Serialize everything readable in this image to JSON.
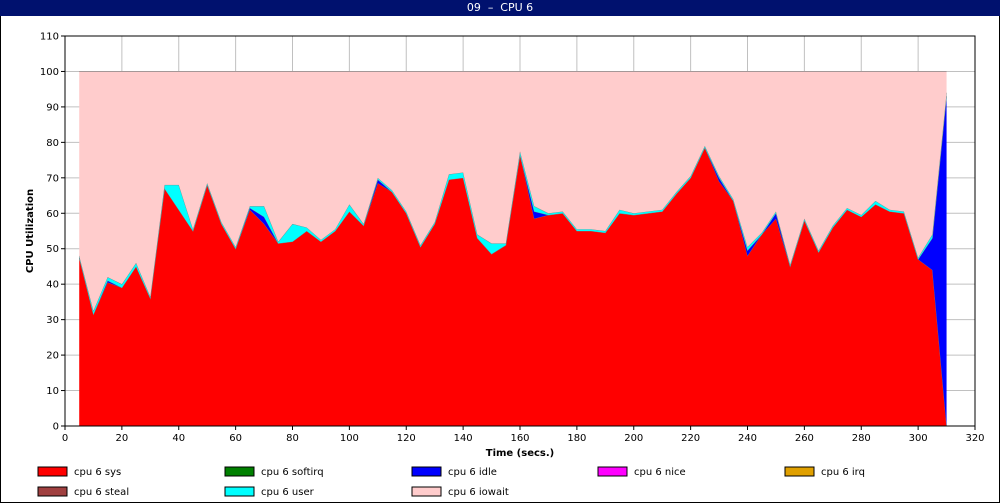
{
  "window": {
    "title": "09  –  CPU 6"
  },
  "chart_data": {
    "type": "area",
    "stacked": true,
    "xlabel": "Time (secs.)",
    "ylabel": "CPU Utilization",
    "xlim": [
      0,
      320
    ],
    "ylim": [
      0,
      110
    ],
    "x_ticks": [
      0,
      20,
      40,
      60,
      80,
      100,
      120,
      140,
      160,
      180,
      200,
      220,
      240,
      260,
      280,
      300,
      320
    ],
    "y_ticks": [
      0,
      10,
      20,
      30,
      40,
      50,
      60,
      70,
      80,
      90,
      100,
      110
    ],
    "grid": true,
    "legend_position": "bottom",
    "x": [
      5,
      10,
      15,
      20,
      25,
      30,
      35,
      40,
      45,
      50,
      55,
      60,
      65,
      70,
      75,
      80,
      85,
      90,
      95,
      100,
      105,
      110,
      115,
      120,
      125,
      130,
      135,
      140,
      145,
      150,
      155,
      160,
      165,
      170,
      175,
      180,
      185,
      190,
      195,
      200,
      205,
      210,
      215,
      220,
      225,
      230,
      235,
      240,
      245,
      250,
      255,
      260,
      265,
      270,
      275,
      280,
      285,
      290,
      295,
      300,
      305,
      310
    ],
    "series": [
      {
        "name": "cpu 6 sys",
        "color": "#ff0000",
        "values": [
          47.5,
          31.5,
          40.5,
          39,
          45,
          36,
          67,
          61,
          55,
          68,
          57,
          50,
          61,
          57,
          51.5,
          52,
          55,
          52,
          55,
          60.5,
          56.5,
          68.5,
          66,
          60,
          50.5,
          57,
          69.5,
          70,
          53,
          48.5,
          51,
          76.5,
          58.5,
          59.5,
          60,
          55,
          55,
          54.5,
          60,
          59.5,
          60,
          60.5,
          65.5,
          70,
          78.5,
          69,
          63.5,
          48,
          54,
          58.5,
          45,
          58,
          49,
          56,
          61,
          59,
          62.5,
          60.5,
          60,
          47,
          44,
          0
        ]
      },
      {
        "name": "cpu 6 softirq",
        "color": "#008000",
        "values": [
          0,
          0,
          0,
          0,
          0,
          0,
          0,
          0,
          0,
          0,
          0,
          0,
          0,
          0,
          0,
          0,
          0,
          0,
          0,
          0,
          0,
          0,
          0,
          0,
          0,
          0,
          0,
          0,
          0,
          0,
          0,
          0,
          0,
          0,
          0,
          0,
          0,
          0,
          0,
          0,
          0,
          0,
          0,
          0,
          0,
          0,
          0,
          0,
          0,
          0,
          0,
          0,
          0,
          0,
          0,
          0,
          0,
          0,
          0,
          0,
          0,
          0
        ]
      },
      {
        "name": "cpu 6 idle",
        "color": "#0000ff",
        "values": [
          0,
          0,
          0.5,
          0,
          0,
          0,
          0,
          0,
          0,
          0,
          0,
          0,
          0.5,
          2,
          0,
          0,
          0,
          0,
          0,
          0,
          0,
          1,
          0,
          0,
          0,
          0,
          0,
          0,
          0,
          0,
          0,
          0,
          2,
          0,
          0,
          0,
          0,
          0,
          0,
          0,
          0,
          0,
          0,
          0,
          0,
          1,
          0,
          1.5,
          0,
          1.5,
          0,
          0,
          0,
          0,
          0,
          0,
          0,
          0,
          0,
          0,
          9,
          93
        ]
      },
      {
        "name": "cpu 6 nice",
        "color": "#ff00ff",
        "values": [
          0,
          0,
          0,
          0,
          0,
          0,
          0,
          0,
          0,
          0,
          0,
          0,
          0,
          0,
          0,
          0,
          0,
          0,
          0,
          0,
          0,
          0,
          0,
          0,
          0,
          0,
          0,
          0,
          0,
          0,
          0,
          0,
          0,
          0,
          0,
          0,
          0,
          0,
          0,
          0,
          0,
          0,
          0,
          0,
          0,
          0,
          0,
          0,
          0,
          0,
          0,
          0,
          0,
          0,
          0,
          0,
          0,
          0,
          0,
          0,
          0,
          0
        ]
      },
      {
        "name": "cpu 6 irq",
        "color": "#e0a000",
        "values": [
          0,
          0,
          0,
          0,
          0,
          0,
          0,
          0,
          0,
          0,
          0,
          0,
          0,
          0,
          0,
          0,
          0,
          0,
          0,
          0,
          0,
          0,
          0,
          0,
          0,
          0,
          0,
          0,
          0,
          0,
          0,
          0,
          0,
          0,
          0,
          0,
          0,
          0,
          0,
          0,
          0,
          0,
          0,
          0,
          0,
          0,
          0,
          0,
          0,
          0,
          0,
          0,
          0,
          0,
          0,
          0,
          0,
          0,
          0,
          0,
          0,
          0
        ]
      },
      {
        "name": "cpu 6 steal",
        "color": "#a04040",
        "values": [
          0,
          0,
          0,
          0,
          0,
          0,
          0,
          0,
          0,
          0,
          0,
          0,
          0,
          0,
          0,
          0,
          0,
          0,
          0,
          0,
          0,
          0,
          0,
          0,
          0,
          0,
          0,
          0,
          0,
          0,
          0,
          0,
          0,
          0,
          0,
          0,
          0,
          0,
          0,
          0,
          0,
          0,
          0,
          0,
          0,
          0,
          0,
          0,
          0,
          0,
          0,
          0,
          0,
          0,
          0,
          0,
          0,
          0,
          0,
          0,
          0,
          0
        ]
      },
      {
        "name": "cpu 6 user",
        "color": "#00ffff",
        "values": [
          0.5,
          1,
          1,
          1,
          1,
          0.5,
          1,
          7,
          0.5,
          0.5,
          0.5,
          0.5,
          0.5,
          3,
          0.5,
          5,
          1,
          0.5,
          0.5,
          2,
          0.5,
          0.5,
          0.5,
          0.5,
          0.5,
          0.5,
          1.5,
          1.5,
          1,
          3,
          0.5,
          1,
          1.5,
          0.5,
          0.5,
          0.5,
          0.5,
          0.5,
          1,
          0.5,
          0.5,
          0.5,
          0.5,
          0.5,
          0.5,
          0.5,
          0.5,
          1,
          0.5,
          0.5,
          0.5,
          0.5,
          0.5,
          0.5,
          0.5,
          0.5,
          1,
          0.5,
          0.5,
          0.5,
          1,
          1
        ]
      },
      {
        "name": "cpu 6 iowait",
        "color": "#ffcccc",
        "values": [
          52,
          67.5,
          58,
          60,
          54,
          63.5,
          32,
          32,
          44.5,
          31.5,
          42.5,
          49.5,
          38,
          38,
          48,
          43,
          44,
          47.5,
          44.5,
          37.5,
          43,
          30,
          33.5,
          39.5,
          49,
          42.5,
          29,
          28.5,
          46,
          48.5,
          48.5,
          22.5,
          38,
          40,
          39.5,
          44.5,
          44.5,
          45,
          39,
          40,
          39.5,
          39,
          34,
          29.5,
          21,
          29.5,
          36,
          49.5,
          45.5,
          39.5,
          54.5,
          41.5,
          50.5,
          43.5,
          38.5,
          40.5,
          36.5,
          39,
          39.5,
          52.5,
          46,
          6
        ]
      }
    ],
    "legend_order": [
      "cpu 6 sys",
      "cpu 6 softirq",
      "cpu 6 idle",
      "cpu 6 nice",
      "cpu 6 irq",
      "cpu 6 steal",
      "cpu 6 user",
      "cpu 6 iowait"
    ]
  }
}
